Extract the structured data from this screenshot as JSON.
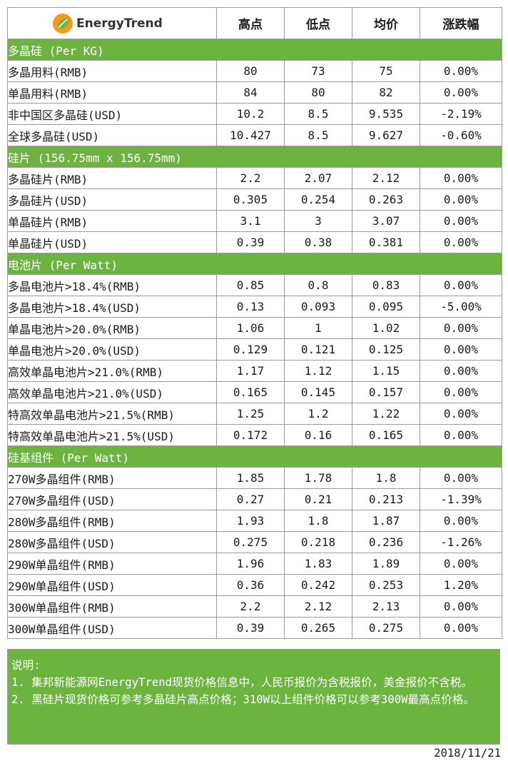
{
  "logo": {
    "text": "EnergyTrend",
    "colors": {
      "orange": "#f39a1e",
      "green": "#6db33f"
    }
  },
  "headers": [
    "高点",
    "低点",
    "均价",
    "涨跌幅"
  ],
  "colors": {
    "section_bg": "#6db33f",
    "border": "#9a9a9a"
  },
  "sections": [
    {
      "title": "多晶硅 (Per KG)",
      "rows": [
        {
          "name": "多晶用料(RMB)",
          "high": "80",
          "low": "73",
          "avg": "75",
          "change": "0.00%"
        },
        {
          "name": "单晶用料(RMB)",
          "high": "84",
          "low": "80",
          "avg": "82",
          "change": "0.00%"
        },
        {
          "name": "非中国区多晶硅(USD)",
          "high": "10.2",
          "low": "8.5",
          "avg": "9.535",
          "change": "-2.19%"
        },
        {
          "name": "全球多晶硅(USD)",
          "high": "10.427",
          "low": "8.5",
          "avg": "9.627",
          "change": "-0.60%"
        }
      ]
    },
    {
      "title": "硅片 (156.75mm x 156.75mm)",
      "rows": [
        {
          "name": "多晶硅片(RMB)",
          "high": "2.2",
          "low": "2.07",
          "avg": "2.12",
          "change": "0.00%"
        },
        {
          "name": "多晶硅片(USD)",
          "high": "0.305",
          "low": "0.254",
          "avg": "0.263",
          "change": "0.00%"
        },
        {
          "name": "单晶硅片(RMB)",
          "high": "3.1",
          "low": "3",
          "avg": "3.07",
          "change": "0.00%"
        },
        {
          "name": "单晶硅片(USD)",
          "high": "0.39",
          "low": "0.38",
          "avg": "0.381",
          "change": "0.00%"
        }
      ]
    },
    {
      "title": "电池片 (Per Watt)",
      "rows": [
        {
          "name": "多晶电池片>18.4%(RMB)",
          "high": "0.85",
          "low": "0.8",
          "avg": "0.83",
          "change": "0.00%"
        },
        {
          "name": "多晶电池片>18.4%(USD)",
          "high": "0.13",
          "low": "0.093",
          "avg": "0.095",
          "change": "-5.00%"
        },
        {
          "name": "单晶电池片>20.0%(RMB)",
          "high": "1.06",
          "low": "1",
          "avg": "1.02",
          "change": "0.00%"
        },
        {
          "name": "单晶电池片>20.0%(USD)",
          "high": "0.129",
          "low": "0.121",
          "avg": "0.125",
          "change": "0.00%"
        },
        {
          "name": "高效单晶电池片>21.0%(RMB)",
          "high": "1.17",
          "low": "1.12",
          "avg": "1.15",
          "change": "0.00%"
        },
        {
          "name": "高效单晶电池片>21.0%(USD)",
          "high": "0.165",
          "low": "0.145",
          "avg": "0.157",
          "change": "0.00%"
        },
        {
          "name": "特高效单晶电池片>21.5%(RMB)",
          "high": "1.25",
          "low": "1.2",
          "avg": "1.22",
          "change": "0.00%"
        },
        {
          "name": "特高效单晶电池片>21.5%(USD)",
          "high": "0.172",
          "low": "0.16",
          "avg": "0.165",
          "change": "0.00%"
        }
      ]
    },
    {
      "title": "硅基组件 (Per Watt)",
      "rows": [
        {
          "name": "270W多晶组件(RMB)",
          "high": "1.85",
          "low": "1.78",
          "avg": "1.8",
          "change": "0.00%"
        },
        {
          "name": "270W多晶组件(USD)",
          "high": "0.27",
          "low": "0.21",
          "avg": "0.213",
          "change": "-1.39%"
        },
        {
          "name": "280W多晶组件(RMB)",
          "high": "1.93",
          "low": "1.8",
          "avg": "1.87",
          "change": "0.00%"
        },
        {
          "name": "280W多晶组件(USD)",
          "high": "0.275",
          "low": "0.218",
          "avg": "0.236",
          "change": "-1.26%"
        },
        {
          "name": "290W单晶组件(RMB)",
          "high": "1.96",
          "low": "1.83",
          "avg": "1.89",
          "change": "0.00%"
        },
        {
          "name": "290W单晶组件(USD)",
          "high": "0.36",
          "low": "0.242",
          "avg": "0.253",
          "change": "1.20%"
        },
        {
          "name": "300W单晶组件(RMB)",
          "high": "2.2",
          "low": "2.12",
          "avg": "2.13",
          "change": "0.00%"
        },
        {
          "name": "300W单晶组件(USD)",
          "high": "0.39",
          "low": "0.265",
          "avg": "0.275",
          "change": "0.00%"
        }
      ]
    }
  ],
  "notes": {
    "title": "说明:",
    "lines": [
      "1. 集邦新能源网EnergyTrend现货价格信息中，人民币报价为含税报价，美金报价不含税。",
      "2. 黑硅片现货价格可参考多晶硅片高点价格；310W以上组件价格可以参考300W最高点价格。"
    ]
  },
  "date": "2018/11/21"
}
